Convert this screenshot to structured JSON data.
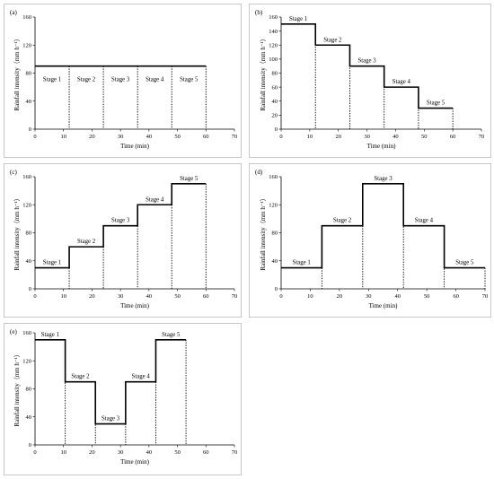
{
  "chart_data": [
    {
      "type": "line",
      "panel_label": "(a)",
      "xlabel": "Time (min)",
      "ylabel": "Rainfall intensity（mm h⁻¹）",
      "xlim": [
        0,
        70
      ],
      "ylim": [
        0,
        160
      ],
      "xticks": [
        0,
        10,
        20,
        30,
        40,
        50,
        60,
        70
      ],
      "yticks": [
        0,
        40,
        80,
        120,
        160
      ],
      "stages": [
        {
          "label": "Stage 1",
          "start": 0,
          "end": 12,
          "intensity": 90
        },
        {
          "label": "Stage 2",
          "start": 12,
          "end": 24,
          "intensity": 90
        },
        {
          "label": "Stage 3",
          "start": 24,
          "end": 36,
          "intensity": 90
        },
        {
          "label": "Stage 4",
          "start": 36,
          "end": 48,
          "intensity": 90
        },
        {
          "label": "Stage 5",
          "start": 48,
          "end": 60,
          "intensity": 90
        }
      ]
    },
    {
      "type": "line",
      "panel_label": "(b)",
      "xlabel": "Time (min)",
      "ylabel": "Rainfall intensity（mm h⁻¹）",
      "xlim": [
        0,
        70
      ],
      "ylim": [
        0,
        160
      ],
      "xticks": [
        0,
        10,
        20,
        30,
        40,
        50,
        60,
        70
      ],
      "yticks": [
        0,
        20,
        40,
        60,
        80,
        100,
        120,
        140,
        160
      ],
      "stages": [
        {
          "label": "Stage 1",
          "start": 0,
          "end": 12,
          "intensity": 150
        },
        {
          "label": "Stage 2",
          "start": 12,
          "end": 24,
          "intensity": 120
        },
        {
          "label": "Stage 3",
          "start": 24,
          "end": 36,
          "intensity": 90
        },
        {
          "label": "Stage 4",
          "start": 36,
          "end": 48,
          "intensity": 60
        },
        {
          "label": "Stage 5",
          "start": 48,
          "end": 60,
          "intensity": 30
        }
      ]
    },
    {
      "type": "line",
      "panel_label": "(c)",
      "xlabel": "Time (min)",
      "ylabel": "Rainfall intensity（mm h⁻¹）",
      "xlim": [
        0,
        70
      ],
      "ylim": [
        0,
        160
      ],
      "xticks": [
        0,
        10,
        20,
        30,
        40,
        50,
        60,
        70
      ],
      "yticks": [
        0,
        40,
        80,
        120,
        160
      ],
      "stages": [
        {
          "label": "Stage 1",
          "start": 0,
          "end": 12,
          "intensity": 30
        },
        {
          "label": "Stage 2",
          "start": 12,
          "end": 24,
          "intensity": 60
        },
        {
          "label": "Stage 3",
          "start": 24,
          "end": 36,
          "intensity": 90
        },
        {
          "label": "Stage 4",
          "start": 36,
          "end": 48,
          "intensity": 120
        },
        {
          "label": "Stage 5",
          "start": 48,
          "end": 60,
          "intensity": 150
        }
      ]
    },
    {
      "type": "line",
      "panel_label": "(d)",
      "xlabel": "Time (min)",
      "ylabel": "Rainfall intensity（mm h⁻¹）",
      "xlim": [
        0,
        70
      ],
      "ylim": [
        0,
        160
      ],
      "xticks": [
        0,
        10,
        20,
        30,
        40,
        50,
        60,
        70
      ],
      "yticks": [
        0,
        40,
        80,
        120,
        160
      ],
      "stages": [
        {
          "label": "Stage 1",
          "start": 0,
          "end": 14,
          "intensity": 30
        },
        {
          "label": "Stage 2",
          "start": 14,
          "end": 28,
          "intensity": 90
        },
        {
          "label": "Stage 3",
          "start": 28,
          "end": 42,
          "intensity": 150
        },
        {
          "label": "Stage 4",
          "start": 42,
          "end": 56,
          "intensity": 90
        },
        {
          "label": "Stage 5",
          "start": 56,
          "end": 70,
          "intensity": 30
        }
      ]
    },
    {
      "type": "line",
      "panel_label": "(e)",
      "xlabel": "Time (min)",
      "ylabel": "Rainfall intensity（mm h⁻¹）",
      "xlim": [
        0,
        70
      ],
      "ylim": [
        0,
        160
      ],
      "xticks": [
        0,
        10,
        20,
        30,
        40,
        50,
        60,
        70
      ],
      "yticks": [
        0,
        40,
        80,
        120,
        160
      ],
      "stages": [
        {
          "label": "Stage 1",
          "start": 0,
          "end": 10.6,
          "intensity": 150
        },
        {
          "label": "Stage 2",
          "start": 10.6,
          "end": 21.2,
          "intensity": 90
        },
        {
          "label": "Stage 3",
          "start": 21.2,
          "end": 31.8,
          "intensity": 30
        },
        {
          "label": "Stage 4",
          "start": 31.8,
          "end": 42.4,
          "intensity": 90
        },
        {
          "label": "Stage 5",
          "start": 42.4,
          "end": 53,
          "intensity": 150
        }
      ]
    }
  ]
}
